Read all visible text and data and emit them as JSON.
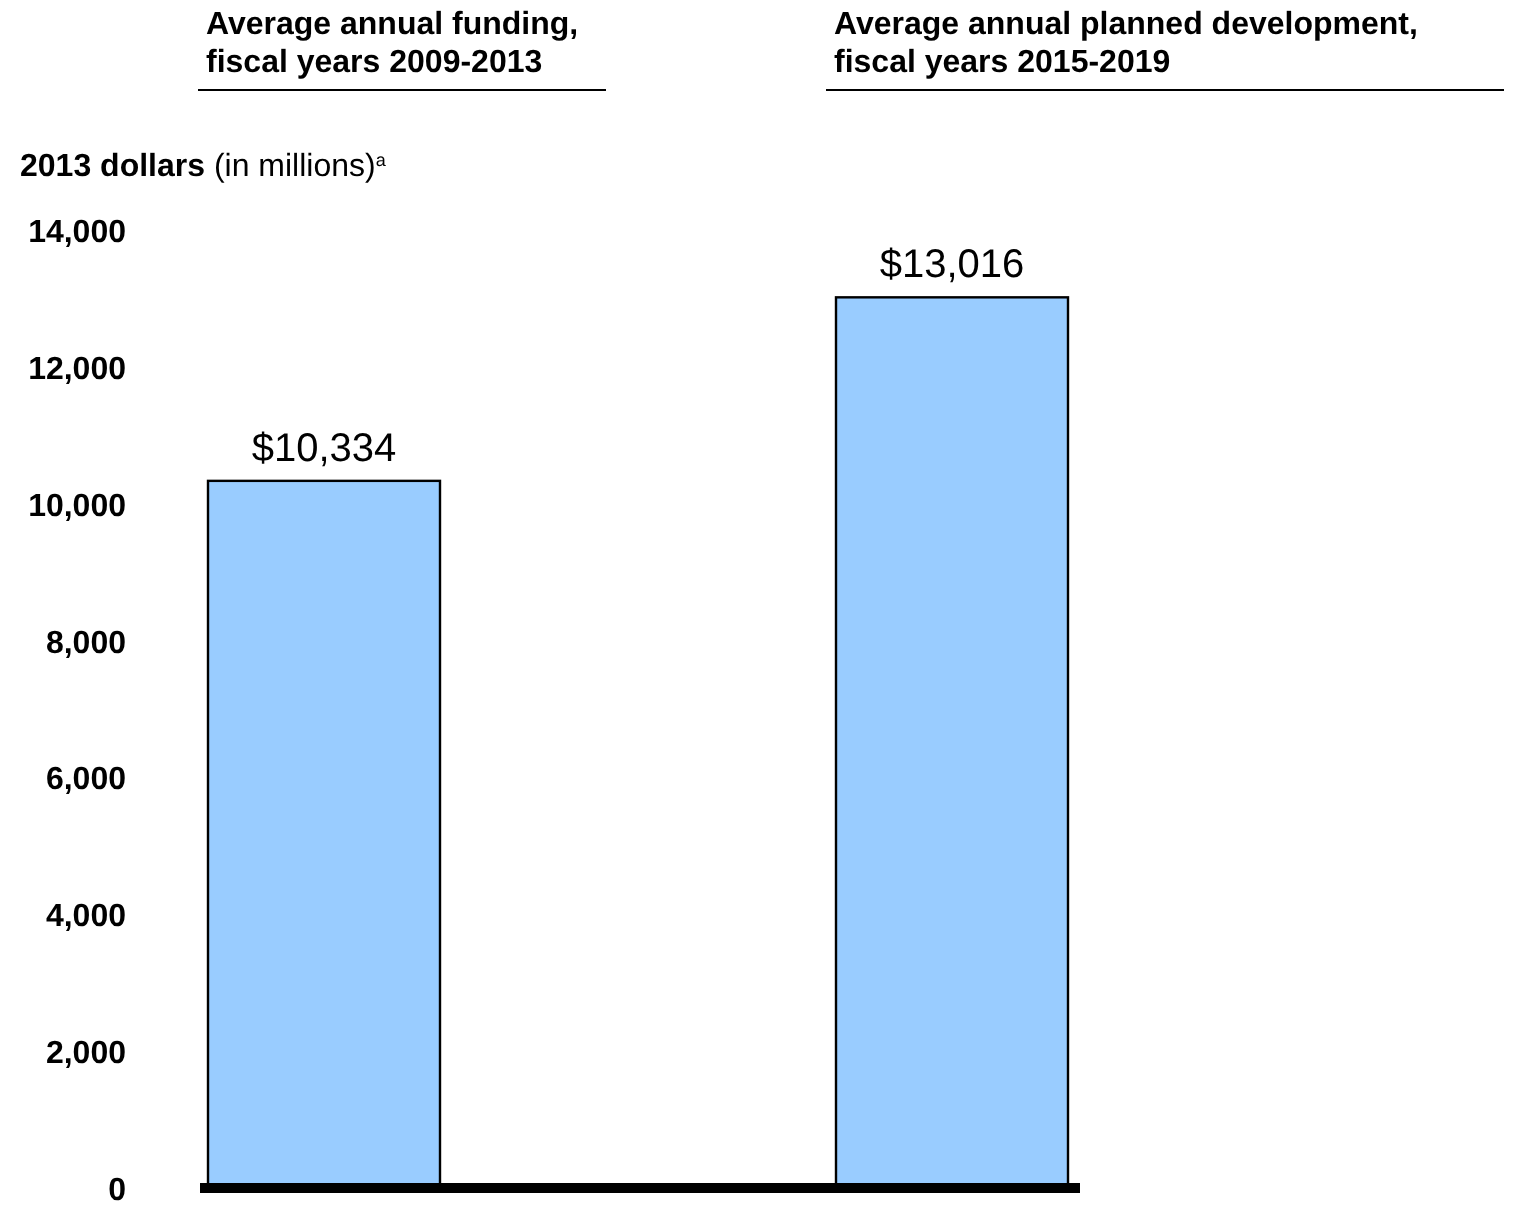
{
  "chart_data": {
    "type": "bar",
    "ylabel": "2013 dollars (in millions)$^{a}$",
    "categories": [
      "Average annual funding, fiscal years 2009-2013",
      "Average annual planned development, fiscal years 2015-2019"
    ],
    "values": [
      10334,
      13016
    ],
    "value_labels": [
      "$10,334",
      "$13,016"
    ],
    "color": "#99ccff",
    "ylim": [
      0,
      14000
    ],
    "yticks": [
      {
        "value": 0,
        "label": "0"
      },
      {
        "value": 2000,
        "label": "2,000"
      },
      {
        "value": 4000,
        "label": "4,000"
      },
      {
        "value": 6000,
        "label": "6,000"
      },
      {
        "value": 8000,
        "label": "8,000"
      },
      {
        "value": 10000,
        "label": "10,000"
      },
      {
        "value": 12000,
        "label": "12,000"
      },
      {
        "value": 14000,
        "label": "14,000"
      }
    ],
    "grid": false,
    "ref_lines": [
      {
        "axis": "y",
        "value": 0,
        "color": "#000000"
      }
    ]
  }
}
